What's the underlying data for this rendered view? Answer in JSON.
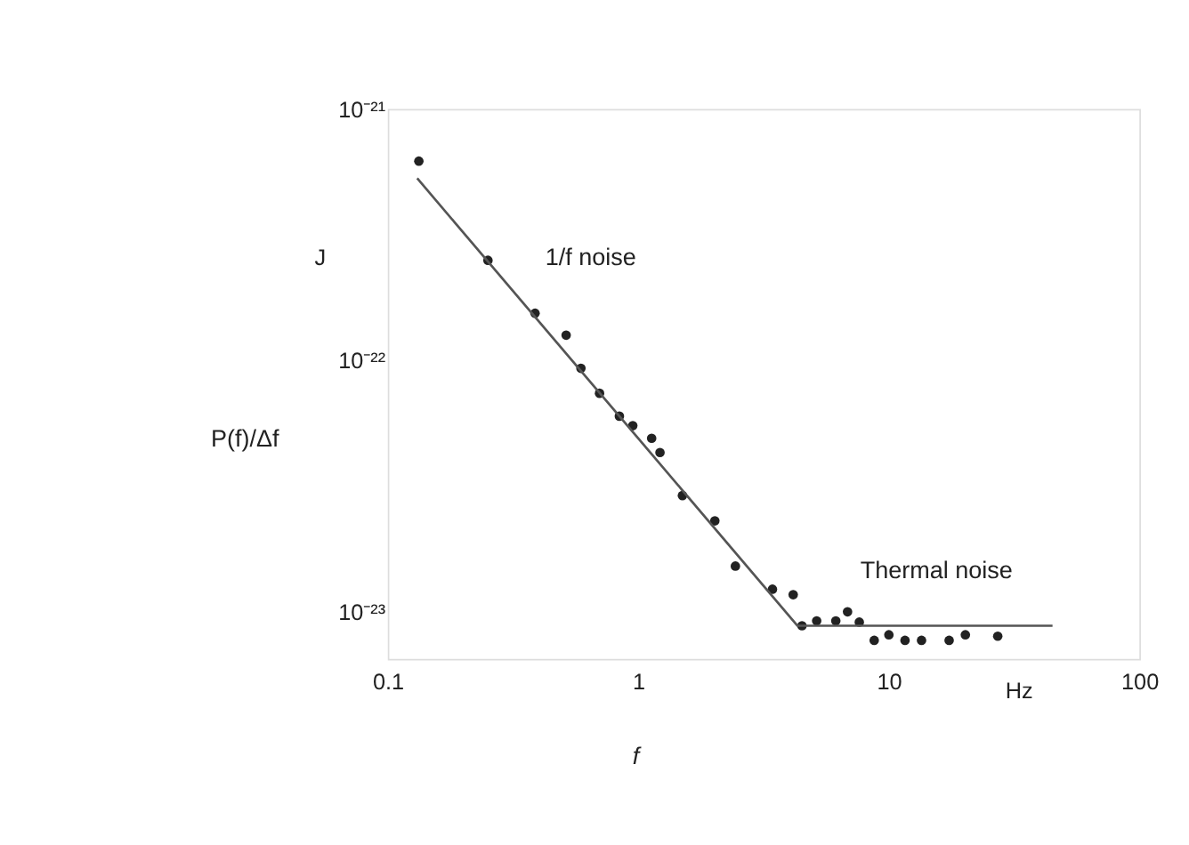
{
  "chart_data": {
    "type": "scatter",
    "xlabel": "f",
    "ylabel": "P(f)/Δf",
    "series": [
      {
        "color": "#222222",
        "marker": "circle",
        "x": [
          0.133,
          0.251,
          0.387,
          0.515,
          0.59,
          0.7,
          0.84,
          0.95,
          1.13,
          1.22,
          1.5,
          2.02,
          2.44,
          3.43,
          4.15,
          4.5,
          5.15,
          6.14,
          6.84,
          7.62,
          8.74,
          10,
          11.6,
          13.5,
          17.4,
          20.2,
          27.2
        ],
        "values": [
          6.2e-22,
          2.5e-22,
          1.54e-22,
          1.26e-22,
          9.3e-23,
          7.4e-23,
          6e-23,
          5.5e-23,
          4.9e-23,
          4.3e-23,
          2.9e-23,
          2.3e-23,
          1.52e-23,
          1.23e-23,
          1.17e-23,
          8.8e-24,
          9.2e-24,
          9.2e-24,
          1e-23,
          9.1e-24,
          7.7e-24,
          8.1e-24,
          7.7e-24,
          7.7e-24,
          7.7e-24,
          8.1e-24,
          8e-24
        ]
      },
      {
        "type": "line",
        "color": "#555555",
        "line_style": "solid",
        "x": [
          0.131,
          4.32,
          45
        ],
        "values": [
          5.3e-22,
          8.8e-24,
          8.8e-24
        ]
      }
    ],
    "log": "xy",
    "xlim": [
      0.1,
      100
    ],
    "xticks": [
      0.1,
      1,
      10,
      100
    ],
    "ylim": [
      6.5e-24,
      1e-21
    ],
    "yticks": [
      {
        "value": 1e-21,
        "label": "10⁻²¹"
      },
      {
        "value": 1e-22,
        "label": "10⁻²²"
      },
      {
        "value": 1e-23,
        "label": "10⁻²³"
      }
    ],
    "annotations": [
      "1/f noise",
      "Thermal noise",
      "J",
      "Hz"
    ],
    "grid": false
  }
}
